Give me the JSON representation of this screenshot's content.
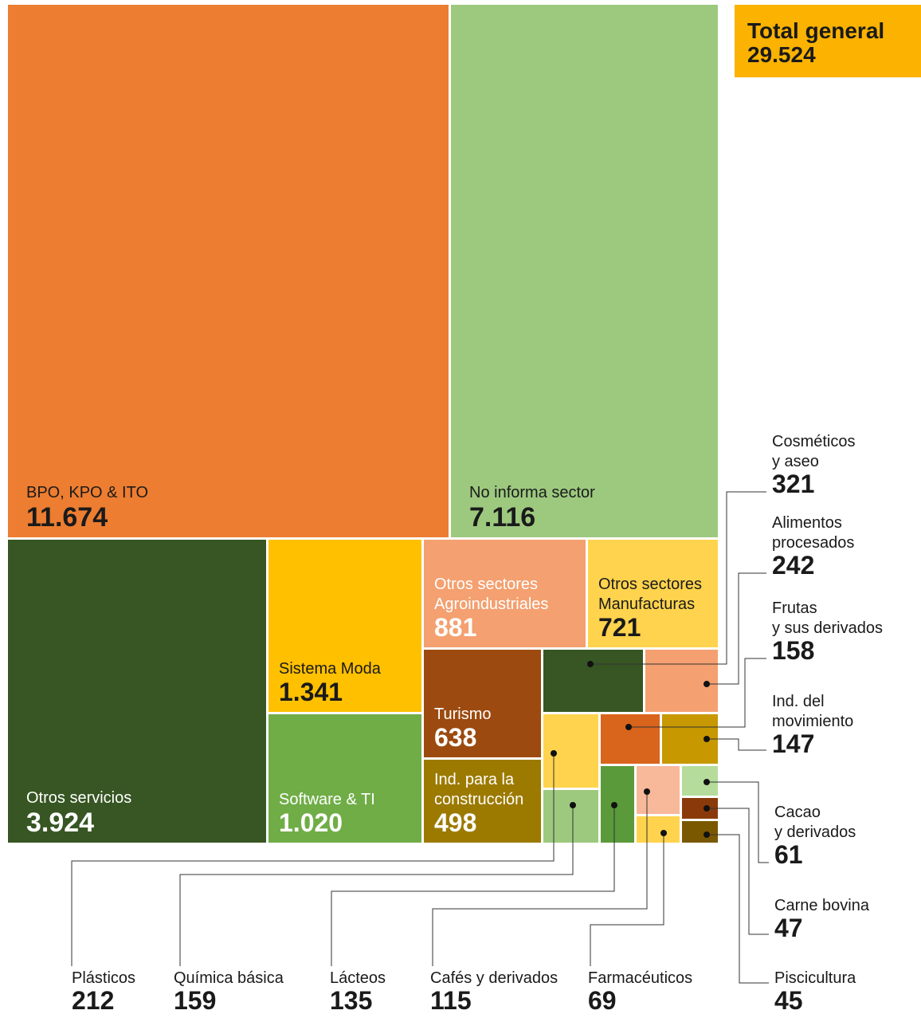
{
  "chart_data": {
    "type": "treemap",
    "total_title": "Total general",
    "total": 29524,
    "total_label": "29.524",
    "categories": [
      [
        "BPO, KPO & ITO"
      ],
      [
        "No informa sector"
      ],
      [
        "Otros servicios"
      ],
      [
        "Sistema Moda"
      ],
      [
        "Software & TI"
      ],
      [
        "Otros sectores",
        "Agroindustriales"
      ],
      [
        "Otros sectores",
        "Manufacturas"
      ],
      [
        "Turismo"
      ],
      [
        "Ind. para la",
        "construcción"
      ],
      [
        "Cosméticos",
        "y aseo"
      ],
      [
        "Alimentos",
        "procesados"
      ],
      [
        "Plásticos"
      ],
      [
        "Frutas",
        "y sus derivados"
      ],
      [
        "Química básica"
      ],
      [
        "Ind. del",
        "movimiento"
      ],
      [
        "Lácteos"
      ],
      [
        "Cafés y derivados"
      ],
      [
        "Farmacéuticos"
      ],
      [
        "Cacao",
        "y derivados"
      ],
      [
        "Carne bovina"
      ],
      [
        "Piscicultura"
      ]
    ],
    "values": [
      11674,
      7116,
      3924,
      1341,
      1020,
      881,
      721,
      638,
      498,
      321,
      242,
      212,
      158,
      159,
      147,
      135,
      115,
      69,
      61,
      47,
      45
    ],
    "value_labels": [
      "11.674",
      "7.116",
      "3.924",
      "1.341",
      "1.020",
      "881",
      "721",
      "638",
      "498",
      "321",
      "242",
      "212",
      "158",
      "159",
      "147",
      "135",
      "115",
      "69",
      "61",
      "47",
      "45"
    ],
    "colors": [
      "#ed7d31",
      "#9dc97f",
      "#375623",
      "#ffc000",
      "#70ad47",
      "#f4a070",
      "#ffd34d",
      "#9c4a0f",
      "#9c7a00",
      "#375623",
      "#f4a070",
      "#ffd34d",
      "#d9641c",
      "#9dc97f",
      "#c79800",
      "#5a9a3a",
      "#f8b89a",
      "#ffd34d",
      "#b5dc9b",
      "#8a3a0a",
      "#7a5800"
    ]
  }
}
